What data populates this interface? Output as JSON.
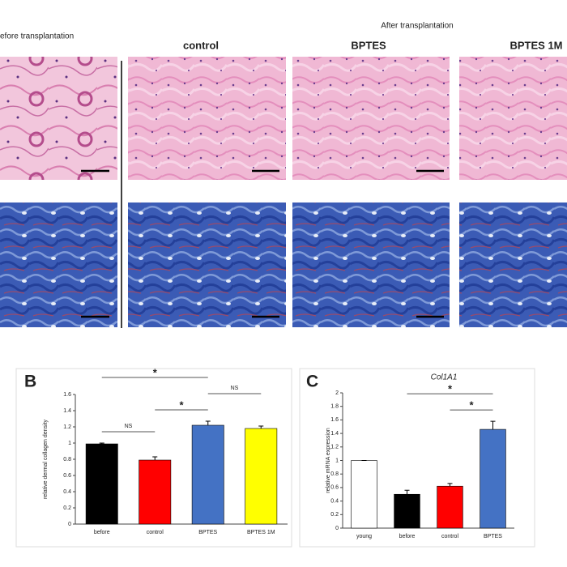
{
  "panel_a": {
    "before_label": "efore transplantation",
    "after_label": "After transplantation",
    "columns": [
      "control",
      "BPTES",
      "BPTES 1M"
    ]
  },
  "chart_data": [
    {
      "type": "bar",
      "panel_label": "B",
      "ylabel": "relative dermal collagen density",
      "categories": [
        "before",
        "control",
        "BPTES",
        "BPTES 1M"
      ],
      "values": [
        0.99,
        0.79,
        1.22,
        1.18
      ],
      "errors": [
        0.01,
        0.04,
        0.05,
        0.03
      ],
      "colors": [
        "#000000",
        "#ff0000",
        "#4472c4",
        "#ffff00"
      ],
      "ylim": [
        0,
        1.6
      ],
      "yticks": [
        0,
        0.2,
        0.4,
        0.6,
        0.8,
        1,
        1.2,
        1.4,
        1.6
      ],
      "significance": [
        {
          "label": "NS",
          "between": [
            "before",
            "control"
          ]
        },
        {
          "label": "*",
          "between": [
            "control",
            "BPTES"
          ]
        },
        {
          "label": "NS",
          "between": [
            "BPTES",
            "BPTES 1M"
          ]
        },
        {
          "label": "*",
          "between": [
            "before",
            "BPTES"
          ]
        }
      ]
    },
    {
      "type": "bar",
      "panel_label": "C",
      "title": "Col1A1",
      "ylabel": "relative mRNA expression",
      "categories": [
        "young",
        "before",
        "control",
        "BPTES"
      ],
      "values": [
        1.0,
        0.5,
        0.62,
        1.46
      ],
      "errors": [
        0,
        0.06,
        0.04,
        0.12
      ],
      "colors": [
        "#ffffff",
        "#000000",
        "#ff0000",
        "#4472c4"
      ],
      "ylim": [
        0,
        2
      ],
      "yticks": [
        0,
        0.2,
        0.4,
        0.6,
        0.8,
        1,
        1.2,
        1.4,
        1.6,
        1.8,
        2
      ],
      "significance": [
        {
          "label": "*",
          "between": [
            "control",
            "BPTES"
          ]
        },
        {
          "label": "*",
          "between": [
            "before",
            "BPTES"
          ]
        }
      ]
    }
  ]
}
